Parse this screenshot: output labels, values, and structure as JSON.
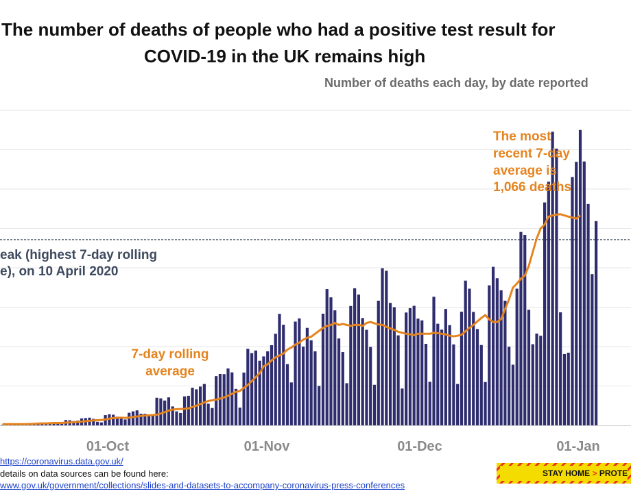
{
  "chart_data": {
    "type": "bar",
    "title_line1": "The number of deaths of people who had a positive test result for",
    "title_line2": "COVID-19 in the UK remains high",
    "subtitle": "Number of deaths each day, by date reported",
    "x_tick_labels": [
      "01-Oct",
      "01-Nov",
      "01-Dec",
      "01-Jan"
    ],
    "ylim": [
      0,
      1600
    ],
    "grid": true,
    "series": [
      {
        "kind": "bar",
        "color": "#2f2d6e",
        "start_date": "2020-09-01",
        "values": [
          3,
          3,
          4,
          5,
          6,
          7,
          7,
          8,
          12,
          13,
          12,
          14,
          14,
          15,
          9,
          9,
          27,
          26,
          22,
          24,
          35,
          37,
          39,
          33,
          18,
          15,
          52,
          56,
          54,
          44,
          42,
          30,
          64,
          71,
          76,
          59,
          59,
          56,
          56,
          140,
          137,
          126,
          142,
          96,
          71,
          63,
          147,
          150,
          191,
          183,
          197,
          210,
          110,
          88,
          250,
          261,
          260,
          289,
          269,
          185,
          90,
          268,
          389,
          367,
          380,
          328,
          350,
          376,
          407,
          465,
          566,
          511,
          311,
          218,
          527,
          543,
          400,
          495,
          432,
          376,
          200,
          567,
          692,
          650,
          584,
          441,
          372,
          214,
          606,
          696,
          664,
          545,
          485,
          398,
          206,
          633,
          798,
          785,
          622,
          600,
          457,
          187,
          573,
          595,
          607,
          542,
          533,
          414,
          221,
          653,
          516,
          486,
          591,
          509,
          411,
          210,
          577,
          735,
          694,
          576,
          489,
          408,
          220,
          711,
          805,
          747,
          686,
          633,
          399,
          308,
          694,
          982,
          967,
          587,
          412,
          466,
          455,
          1132,
          1237,
          1491,
          1405,
          574,
          362,
          369,
          1261,
          1338,
          1500,
          1340,
          1124,
          768,
          1037
        ]
      },
      {
        "kind": "line",
        "name": "7-day rolling average",
        "color": "#e5841f",
        "start_date": "2020-09-01",
        "values": [
          6,
          6,
          6,
          6,
          6,
          6,
          6,
          7,
          8,
          9,
          10,
          10,
          11,
          12,
          12,
          12,
          14,
          15,
          16,
          17,
          19,
          21,
          23,
          25,
          26,
          27,
          30,
          34,
          37,
          38,
          39,
          38,
          39,
          42,
          45,
          48,
          50,
          51,
          52,
          54,
          60,
          67,
          75,
          80,
          82,
          83,
          84,
          86,
          93,
          100,
          108,
          116,
          124,
          127,
          131,
          136,
          142,
          150,
          160,
          170,
          175,
          190,
          205,
          225,
          245,
          265,
          300,
          310,
          330,
          345,
          355,
          365,
          385,
          395,
          410,
          420,
          435,
          445,
          450,
          465,
          480,
          495,
          505,
          510,
          520,
          510,
          515,
          510,
          505,
          510,
          510,
          505,
          520,
          525,
          518,
          512,
          510,
          500,
          492,
          485,
          475,
          470,
          465,
          462,
          458,
          465,
          465,
          465,
          465,
          470,
          468,
          465,
          462,
          455,
          452,
          455,
          460,
          478,
          495,
          510,
          528,
          545,
          560,
          538,
          525,
          525,
          540,
          590,
          640,
          700,
          720,
          745,
          760,
          810,
          880,
          950,
          1000,
          1020,
          1060,
          1066,
          1070,
          1072,
          1066,
          1060,
          1055,
          1050,
          1066
        ]
      }
    ],
    "reference_line": {
      "value": 943,
      "style": "dashed",
      "color": "#3e4a5e"
    },
    "annotations": {
      "recent_average": [
        "The most",
        "recent 7-day",
        "average is",
        "1,066 deaths"
      ],
      "peak": [
        "eak (highest 7-day rolling",
        "e), on 10 April 2020"
      ],
      "rolling_label": [
        "7-day rolling",
        "average"
      ]
    }
  },
  "footer": {
    "source_link": "https://coronavirus.data.gov.uk/",
    "details_text": "details on data sources can be found here:",
    "slides_link": "www.gov.uk/government/collections/slides-and-datasets-to-accompany-coronavirus-press-conferences"
  },
  "banner": {
    "stay_home": "STAY HOME",
    "separator": ">",
    "protect": "PROTECT T"
  }
}
